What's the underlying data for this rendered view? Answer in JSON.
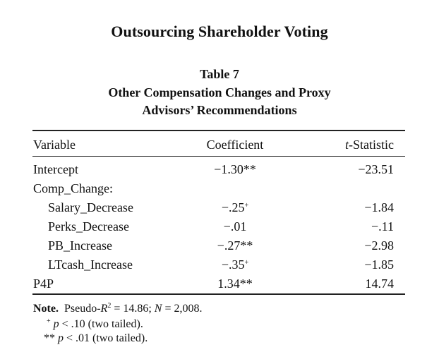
{
  "running_head": "Outsourcing Shareholder Voting",
  "table": {
    "number": "Table 7",
    "title_line1": "Other Compensation Changes and Proxy",
    "title_line2": "Advisors’ Recommendations",
    "headers": {
      "variable": "Variable",
      "coefficient": "Coefficient",
      "t_prefix": "t",
      "t_suffix": "-Statistic"
    },
    "rows": [
      {
        "variable": "Intercept",
        "coef": "−1.30",
        "coef_mark": "**",
        "tstat": "−23.51",
        "indent": false
      },
      {
        "variable": "Comp_Change:",
        "coef": "",
        "coef_mark": "",
        "tstat": "",
        "indent": false
      },
      {
        "variable": "Salary_Decrease",
        "coef": "−.25",
        "coef_mark": "+",
        "tstat": "−1.84",
        "indent": true
      },
      {
        "variable": "Perks_Decrease",
        "coef": "−.01",
        "coef_mark": "",
        "tstat": "−.11",
        "indent": true
      },
      {
        "variable": "PB_Increase",
        "coef": "−.27",
        "coef_mark": "**",
        "tstat": "−2.98",
        "indent": true
      },
      {
        "variable": "LTcash_Increase",
        "coef": "−.35",
        "coef_mark": "+",
        "tstat": "−1.85",
        "indent": true
      },
      {
        "variable": "P4P",
        "coef": "1.34",
        "coef_mark": "**",
        "tstat": "14.74",
        "indent": false
      }
    ]
  },
  "note": {
    "label": "Note.",
    "pseudo_r2_label": "Pseudo-",
    "r_letter": "R",
    "r_exp": "2",
    "r2_value": " = 14.86; ",
    "n_letter": "N",
    "n_value": " = 2,008.",
    "sig1_mark": "+",
    "sig1_p": "p",
    "sig1_text": " < .10 (two tailed).",
    "sig2_mark": "**",
    "sig2_p": "p",
    "sig2_text": " < .01 (two tailed)."
  }
}
